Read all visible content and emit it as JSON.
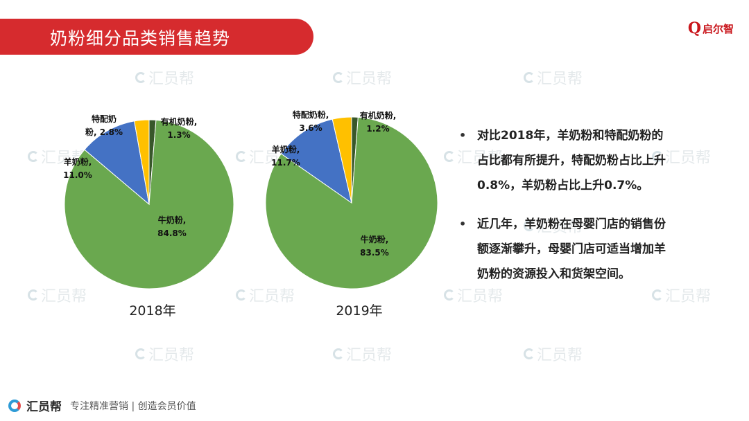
{
  "header": {
    "title": "奶粉细分品类销售趋势",
    "logo_text": "启尔智",
    "logo_mark": "Q"
  },
  "watermark_text": "汇员帮",
  "colors": {
    "title_bg": "#d62b2e",
    "牛奶粉": "#6aa84f",
    "羊奶粉": "#4472c4",
    "特配奶粉": "#ffc000",
    "有机奶粉": "#38572a"
  },
  "chart_data": [
    {
      "type": "pie",
      "title": "2018年",
      "slices": [
        {
          "name": "有机奶粉",
          "value": 1.3,
          "label_line1": "有机奶粉,",
          "label_line2": "1.3%"
        },
        {
          "name": "牛奶粉",
          "value": 84.8,
          "label_line1": "牛奶粉,",
          "label_line2": "84.8%"
        },
        {
          "name": "羊奶粉",
          "value": 11.0,
          "label_line1": "羊奶粉,",
          "label_line2": "11.0%"
        },
        {
          "name": "特配奶粉",
          "value": 2.8,
          "label_line1": "特配奶",
          "label_line2": "粉, 2.8%"
        }
      ]
    },
    {
      "type": "pie",
      "title": "2019年",
      "slices": [
        {
          "name": "有机奶粉",
          "value": 1.2,
          "label_line1": "有机奶粉,",
          "label_line2": "1.2%"
        },
        {
          "name": "牛奶粉",
          "value": 83.5,
          "label_line1": "牛奶粉,",
          "label_line2": "83.5%"
        },
        {
          "name": "羊奶粉",
          "value": 11.7,
          "label_line1": "羊奶粉,",
          "label_line2": "11.7%"
        },
        {
          "name": "特配奶粉",
          "value": 3.6,
          "label_line1": "特配奶粉,",
          "label_line2": "3.6%"
        }
      ]
    }
  ],
  "bullets": [
    {
      "lines": [
        "对比2018年，羊奶粉和特配奶粉的",
        "占比都有所提升，特配奶粉占比上升",
        "0.8%，羊奶粉占比上升0.7%。"
      ]
    },
    {
      "lines": [
        "近几年，羊奶粉在母婴门店的销售份",
        "额逐渐攀升，母婴门店可适当增加羊",
        "奶粉的资源投入和货架空间。"
      ]
    }
  ],
  "footer": {
    "brand": "汇员帮",
    "slogan": "专注精准营销 | 创造会员价值"
  }
}
